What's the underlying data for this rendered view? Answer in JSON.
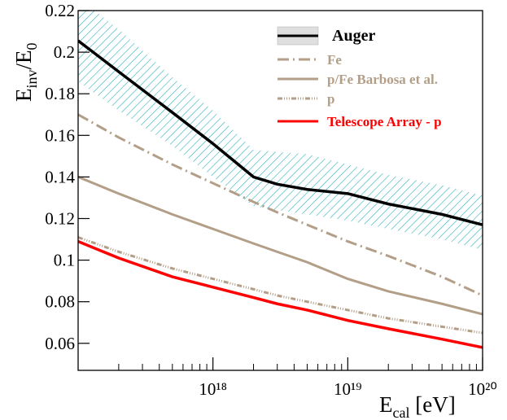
{
  "chart_data": {
    "type": "line",
    "y_label": [
      "E",
      "inv",
      "/E",
      "0"
    ],
    "x_label": [
      "E",
      "cal",
      " [eV]"
    ],
    "log_x": true,
    "xlim": [
      1e+17,
      1e+20
    ],
    "xticks": [
      {
        "value": 1e+18,
        "label": "10¹⁸"
      },
      {
        "value": 1e+19,
        "label": "10¹⁹"
      },
      {
        "value": 1e+20,
        "label": "10²⁰"
      }
    ],
    "ylim": [
      0.047,
      0.22
    ],
    "yticks": [
      0.06,
      0.08,
      0.1,
      0.12,
      0.14,
      0.16,
      0.18,
      0.2,
      0.22
    ],
    "x": [
      1e+17,
      2e+17,
      5e+17,
      1e+18,
      2e+18,
      3e+18,
      5e+18,
      1e+19,
      2e+19,
      5e+19,
      1e+20
    ],
    "band": {
      "color": "#2ab0b8",
      "upper": [
        0.226,
        0.211,
        0.188,
        0.172,
        0.153,
        0.152,
        0.151,
        0.146,
        0.141,
        0.136,
        0.131
      ],
      "lower": [
        0.186,
        0.172,
        0.155,
        0.14,
        0.126,
        0.124,
        0.122,
        0.119,
        0.115,
        0.11,
        0.105
      ]
    },
    "series": [
      {
        "name": "Auger",
        "color": "#000000",
        "dash": "none",
        "values": [
          0.2055,
          0.1906,
          0.171,
          0.156,
          0.14,
          0.1365,
          0.134,
          0.132,
          0.127,
          0.122,
          0.117
        ]
      },
      {
        "name": "Fe",
        "color": "#b39e87",
        "dash": "14 5 2 5",
        "values": [
          0.17,
          0.159,
          0.146,
          0.137,
          0.128,
          0.123,
          0.117,
          0.109,
          0.102,
          0.092,
          0.083
        ]
      },
      {
        "name": "p/Fe  Barbosa et al.",
        "color": "#b39e87",
        "dash": "none",
        "values": [
          0.14,
          0.132,
          0.122,
          0.115,
          0.108,
          0.104,
          0.099,
          0.091,
          0.085,
          0.079,
          0.074
        ]
      },
      {
        "name": "p",
        "color": "#b39e87",
        "dash": "6 2 1 2 1 2 1 2",
        "values": [
          0.111,
          0.104,
          0.096,
          0.091,
          0.086,
          0.083,
          0.08,
          0.076,
          0.072,
          0.068,
          0.065
        ]
      },
      {
        "name": "Telescope Array - p",
        "color": "#ff0000",
        "dash": "none",
        "values": [
          0.109,
          0.101,
          0.092,
          0.087,
          0.082,
          0.079,
          0.076,
          0.071,
          0.067,
          0.062,
          0.058
        ]
      }
    ]
  }
}
